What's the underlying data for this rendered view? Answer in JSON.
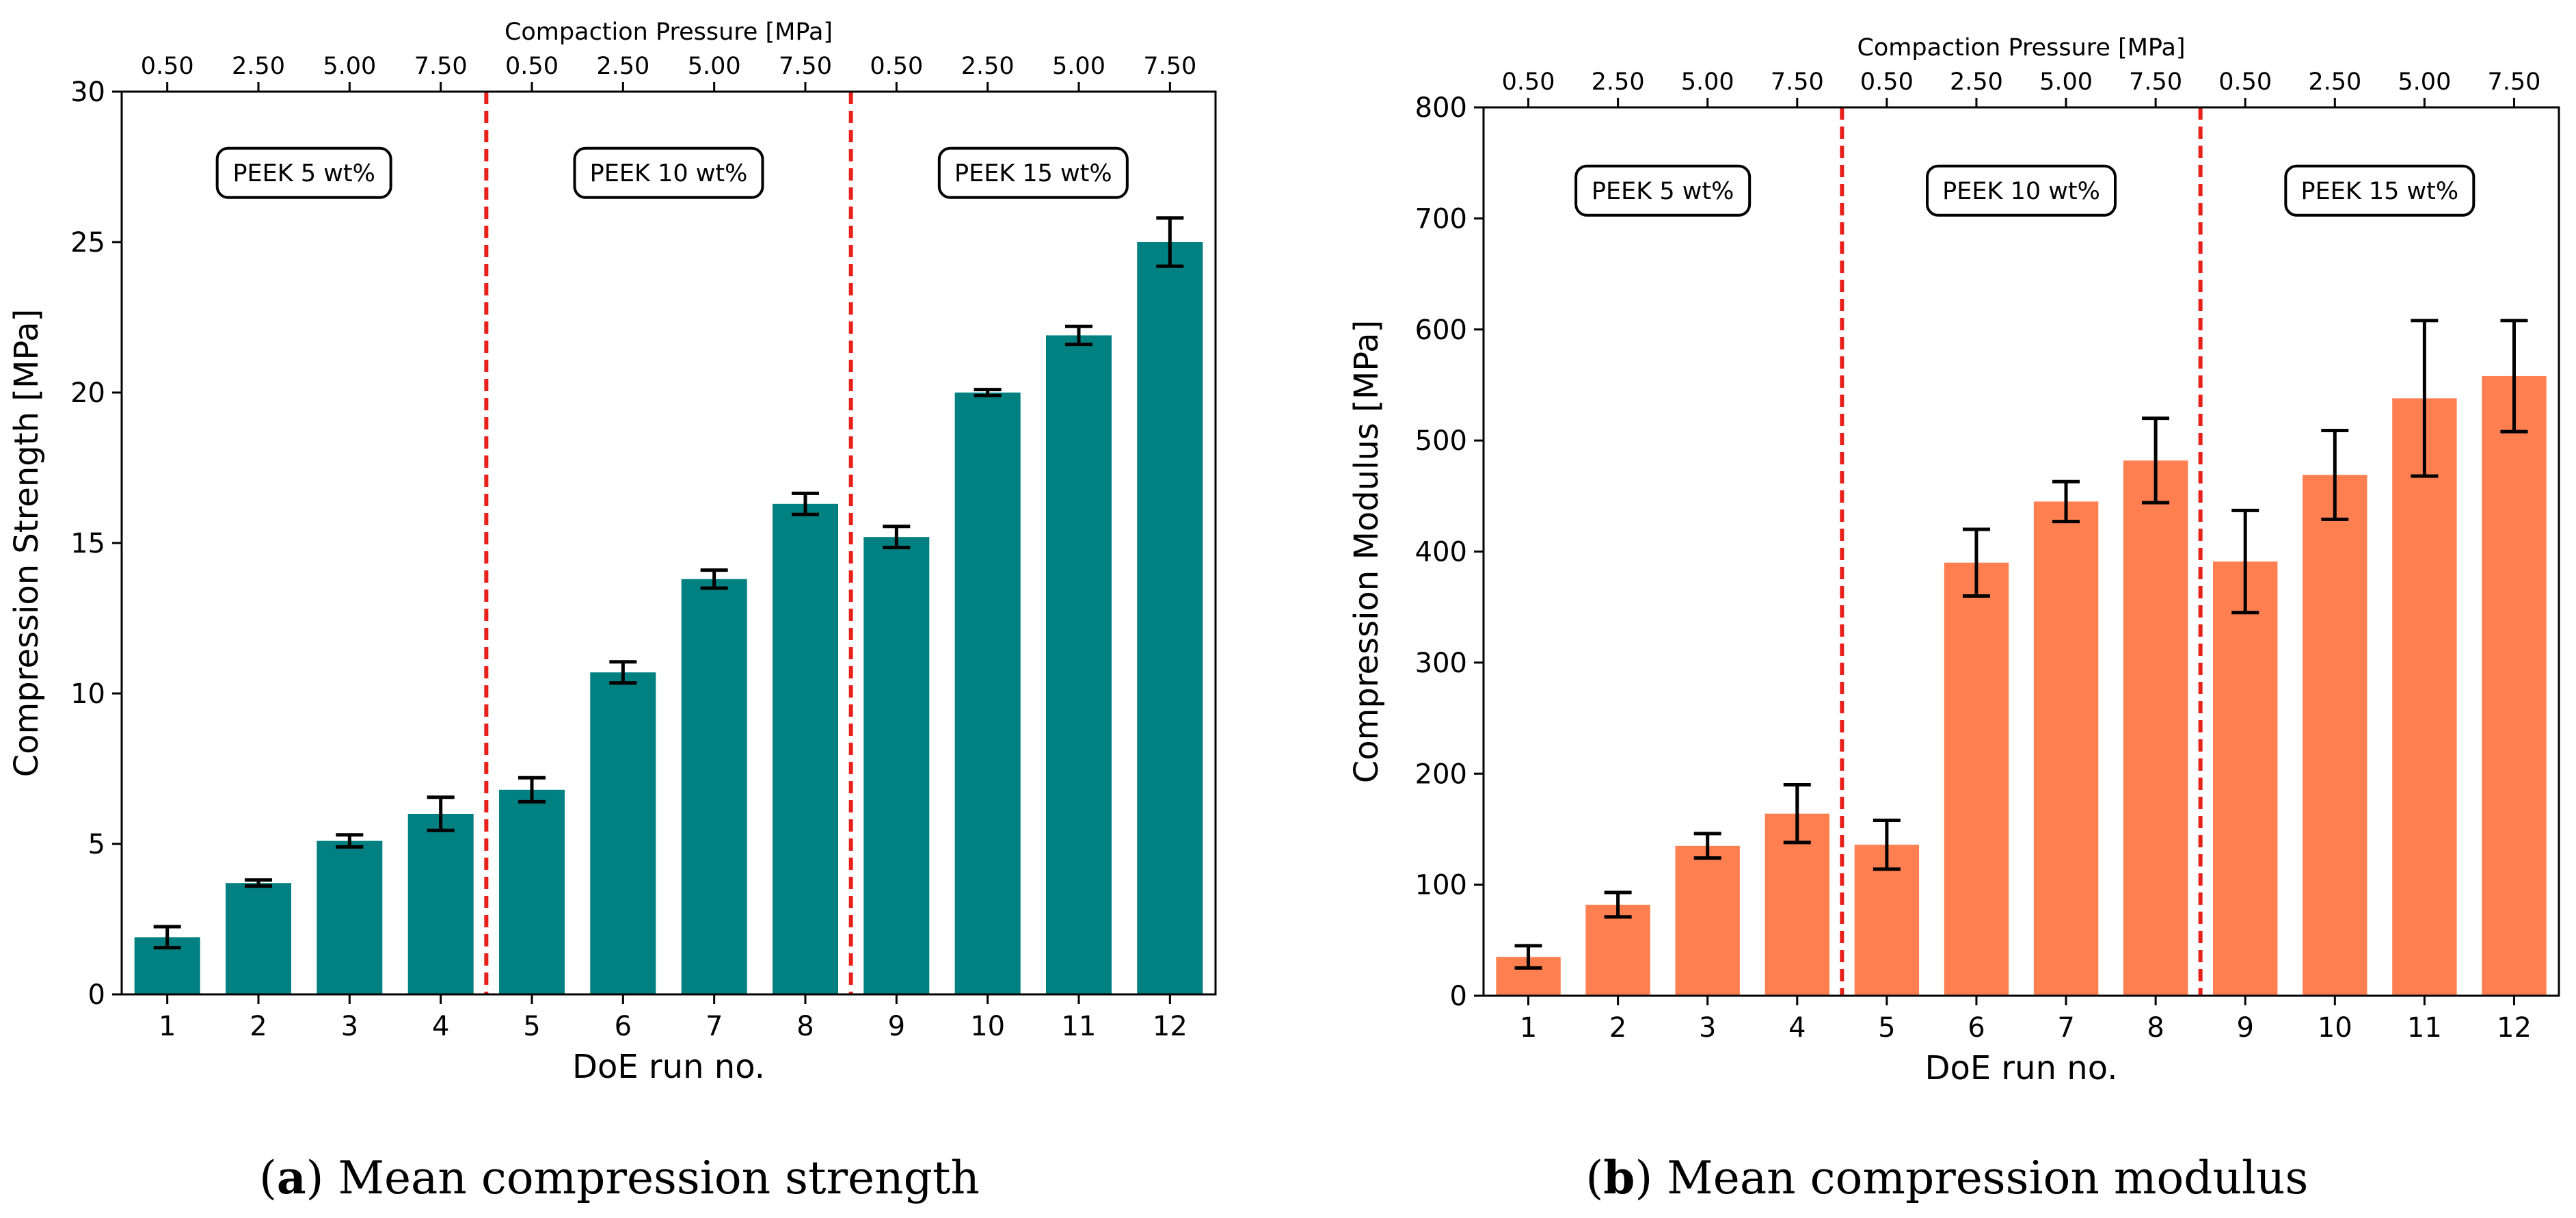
{
  "chart_data": [
    {
      "type": "bar",
      "panel": "a",
      "caption_letter": "a",
      "caption_text": " Mean compression strength",
      "caption_open": "(",
      "caption_close": ")",
      "xlabel": "DoE run no.",
      "ylabel": "Compression Strength [MPa]",
      "top_xlabel": "Compaction Pressure [MPa]",
      "ylim": [
        0,
        30
      ],
      "yticks": [
        0,
        5,
        10,
        15,
        20,
        25,
        30
      ],
      "categories": [
        "1",
        "2",
        "3",
        "4",
        "5",
        "6",
        "7",
        "8",
        "9",
        "10",
        "11",
        "12"
      ],
      "top_tick_labels": [
        "0.50",
        "2.50",
        "5.00",
        "7.50",
        "0.50",
        "2.50",
        "5.00",
        "7.50",
        "0.50",
        "2.50",
        "5.00",
        "7.50"
      ],
      "values": [
        1.9,
        3.7,
        5.1,
        6.0,
        6.8,
        10.7,
        13.8,
        16.3,
        15.2,
        20.0,
        21.9,
        25.0
      ],
      "errors": [
        0.35,
        0.1,
        0.2,
        0.55,
        0.4,
        0.35,
        0.3,
        0.35,
        0.35,
        0.1,
        0.3,
        0.8
      ],
      "bar_color": "#008080",
      "separator_color": "#e8201a",
      "separators_after": [
        4,
        8
      ],
      "groups": [
        "PEEK 5 wt%",
        "PEEK 10 wt%",
        "PEEK 15 wt%"
      ],
      "group_label_value": 27.3
    },
    {
      "type": "bar",
      "panel": "b",
      "caption_letter": "b",
      "caption_text": " Mean compression modulus",
      "caption_open": "(",
      "caption_close": ")",
      "xlabel": "DoE run no.",
      "ylabel": "Compression Modulus [MPa]",
      "top_xlabel": "Compaction Pressure [MPa]",
      "ylim": [
        0,
        800
      ],
      "yticks": [
        0,
        100,
        200,
        300,
        400,
        500,
        600,
        700,
        800
      ],
      "categories": [
        "1",
        "2",
        "3",
        "4",
        "5",
        "6",
        "7",
        "8",
        "9",
        "10",
        "11",
        "12"
      ],
      "top_tick_labels": [
        "0.50",
        "2.50",
        "5.00",
        "7.50",
        "0.50",
        "2.50",
        "5.00",
        "7.50",
        "0.50",
        "2.50",
        "5.00",
        "7.50"
      ],
      "values": [
        35,
        82,
        135,
        164,
        136,
        390,
        445,
        482,
        391,
        469,
        538,
        558
      ],
      "errors": [
        10,
        11,
        11,
        26,
        22,
        30,
        18,
        38,
        46,
        40,
        70,
        50
      ],
      "bar_color": "#ff7f50",
      "separator_color": "#e8201a",
      "separators_after": [
        4,
        8
      ],
      "groups": [
        "PEEK 5 wt%",
        "PEEK 10 wt%",
        "PEEK 15 wt%"
      ],
      "group_label_value": 725
    }
  ]
}
